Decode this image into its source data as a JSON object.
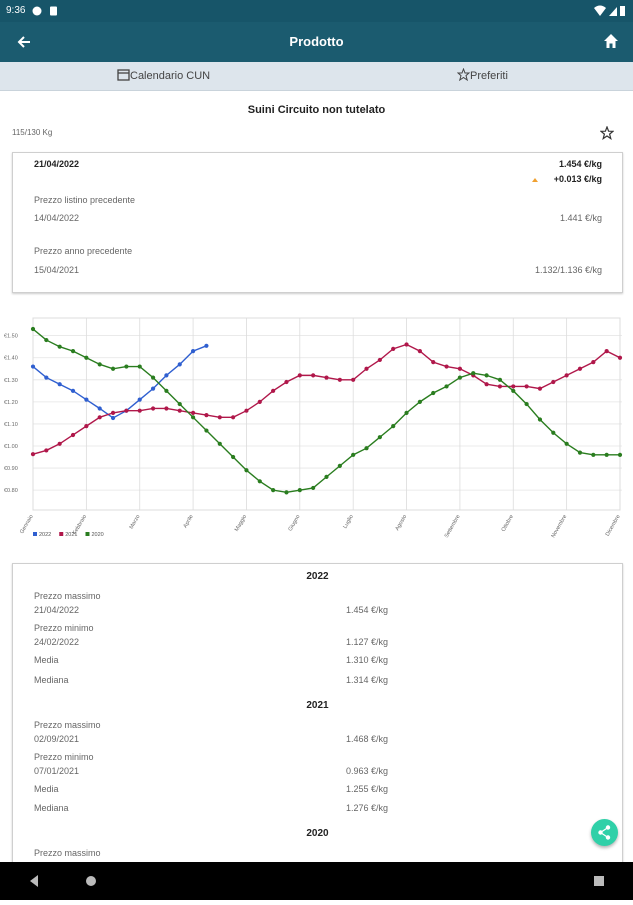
{
  "status_bar": {
    "time": "9:36"
  },
  "app_bar": {
    "title": "Prodotto"
  },
  "tabs": [
    "Calendario CUN",
    "Preferiti"
  ],
  "product": {
    "title": "Suini Circuito non tutelato",
    "weight": "115/130 Kg"
  },
  "summary": {
    "date": "21/04/2022",
    "price": "1.454 €/kg",
    "change": "+0.013 €/kg",
    "previous_label": "Prezzo listino precedente",
    "previous_date": "14/04/2022",
    "previous_price": "1.441 €/kg",
    "year_label": "Prezzo anno precedente",
    "year_date": "15/04/2021",
    "year_price": "1.132/1.136 €/kg"
  },
  "chart_data": {
    "type": "line",
    "categories": [
      "Gennaio",
      null,
      null,
      null,
      "Febbraio",
      null,
      null,
      null,
      "Marzo",
      null,
      null,
      null,
      "Aprile",
      null,
      null,
      null,
      "Maggio",
      null,
      null,
      null,
      "Giugno",
      null,
      null,
      null,
      "Luglio",
      null,
      null,
      null,
      "Agosto",
      null,
      null,
      null,
      "Settembre",
      null,
      null,
      null,
      "Ottobre",
      null,
      null,
      null,
      "Novembre",
      null,
      null,
      null,
      "Dicembre"
    ],
    "series": [
      {
        "name": "2022",
        "color": "#2f5fd0",
        "values": [
          1.36,
          1.31,
          1.28,
          1.25,
          1.21,
          1.17,
          1.127,
          1.16,
          1.21,
          1.26,
          1.32,
          1.37,
          1.43,
          1.454,
          null,
          null,
          null,
          null,
          null,
          null,
          null,
          null,
          null,
          null,
          null,
          null,
          null,
          null,
          null,
          null,
          null,
          null,
          null,
          null,
          null,
          null,
          null,
          null,
          null,
          null,
          null,
          null,
          null,
          null,
          null
        ]
      },
      {
        "name": "2021",
        "color": "#b0174a",
        "values": [
          0.963,
          0.98,
          1.01,
          1.05,
          1.09,
          1.13,
          1.15,
          1.16,
          1.16,
          1.17,
          1.17,
          1.16,
          1.15,
          1.14,
          1.13,
          1.13,
          1.16,
          1.2,
          1.25,
          1.29,
          1.32,
          1.32,
          1.31,
          1.3,
          1.3,
          1.35,
          1.39,
          1.44,
          1.46,
          1.43,
          1.38,
          1.36,
          1.35,
          1.32,
          1.28,
          1.27,
          1.27,
          1.27,
          1.26,
          1.29,
          1.32,
          1.35,
          1.38,
          1.43,
          1.4
        ]
      },
      {
        "name": "2020",
        "color": "#2a7d1f",
        "values": [
          1.53,
          1.48,
          1.45,
          1.43,
          1.4,
          1.37,
          1.35,
          1.36,
          1.36,
          1.31,
          1.25,
          1.19,
          1.13,
          1.07,
          1.01,
          0.95,
          0.89,
          0.84,
          0.8,
          0.79,
          0.8,
          0.81,
          0.86,
          0.91,
          0.96,
          0.99,
          1.04,
          1.09,
          1.15,
          1.2,
          1.24,
          1.27,
          1.31,
          1.33,
          1.32,
          1.3,
          1.25,
          1.19,
          1.12,
          1.06,
          1.01,
          0.97,
          0.96,
          0.96,
          0.96
        ]
      }
    ],
    "ylim": [
      0.71,
      1.58
    ],
    "yticks": [
      {
        "value": 0.8,
        "label": "€0.80"
      },
      {
        "value": 0.9,
        "label": "€0.90"
      },
      {
        "value": 1.0,
        "label": "€1.00"
      },
      {
        "value": 1.1,
        "label": "€1.10"
      },
      {
        "value": 1.2,
        "label": "€1.20"
      },
      {
        "value": 1.3,
        "label": "€1.30"
      },
      {
        "value": 1.4,
        "label": "€1.40"
      },
      {
        "value": 1.5,
        "label": "€1.50"
      }
    ],
    "grid": true,
    "legend": "bottom-left"
  },
  "stats": [
    {
      "year": "2022",
      "rows": [
        {
          "label": "Prezzo massimo",
          "date": "21/04/2022",
          "value": "1.454 €/kg"
        },
        {
          "label": "Prezzo minimo",
          "date": "24/02/2022",
          "value": "1.127 €/kg"
        },
        {
          "label": "Media",
          "value": "1.310 €/kg"
        },
        {
          "label": "Mediana",
          "value": "1.314 €/kg"
        }
      ]
    },
    {
      "year": "2021",
      "rows": [
        {
          "label": "Prezzo massimo",
          "date": "02/09/2021",
          "value": "1.468 €/kg"
        },
        {
          "label": "Prezzo minimo",
          "date": "07/01/2021",
          "value": "0.963 €/kg"
        },
        {
          "label": "Media",
          "value": "1.255 €/kg"
        },
        {
          "label": "Mediana",
          "value": "1.276 €/kg"
        }
      ]
    },
    {
      "year": "2020",
      "rows": [
        {
          "label": "Prezzo massimo"
        }
      ]
    }
  ]
}
